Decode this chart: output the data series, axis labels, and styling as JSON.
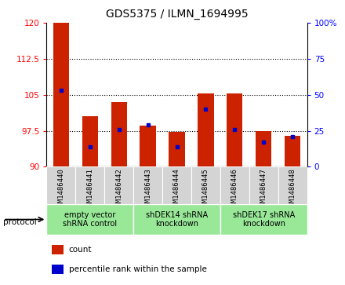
{
  "title": "GDS5375 / ILMN_1694995",
  "samples": [
    "GSM1486440",
    "GSM1486441",
    "GSM1486442",
    "GSM1486443",
    "GSM1486444",
    "GSM1486445",
    "GSM1486446",
    "GSM1486447",
    "GSM1486448"
  ],
  "bar_heights": [
    120.0,
    100.5,
    103.5,
    98.5,
    97.2,
    105.2,
    105.2,
    97.5,
    96.5
  ],
  "percentile_values": [
    53,
    14,
    26,
    29,
    14,
    40,
    26,
    17,
    21
  ],
  "ylim_left": [
    90,
    120
  ],
  "ylim_right": [
    0,
    100
  ],
  "yticks_left": [
    90,
    97.5,
    105,
    112.5,
    120
  ],
  "yticks_right": [
    0,
    25,
    50,
    75,
    100
  ],
  "ytick_labels_left": [
    "90",
    "97.5",
    "105",
    "112.5",
    "120"
  ],
  "ytick_labels_right": [
    "0",
    "25",
    "50",
    "75",
    "100%"
  ],
  "bar_color": "#cc2200",
  "marker_color": "#0000cc",
  "bg_label": "#d4d4d4",
  "bg_proto": "#98e898",
  "groups": [
    {
      "label": "empty vector\nshRNA control",
      "start": 0,
      "end": 3
    },
    {
      "label": "shDEK14 shRNA\nknockdown",
      "start": 3,
      "end": 6
    },
    {
      "label": "shDEK17 shRNA\nknockdown",
      "start": 6,
      "end": 9
    }
  ],
  "legend_count_label": "count",
  "legend_pct_label": "percentile rank within the sample",
  "protocol_label": "protocol",
  "bar_width": 0.55,
  "title_fontsize": 10,
  "tick_fontsize": 7.5,
  "sample_fontsize": 6.5,
  "group_fontsize": 7,
  "legend_fontsize": 7.5
}
